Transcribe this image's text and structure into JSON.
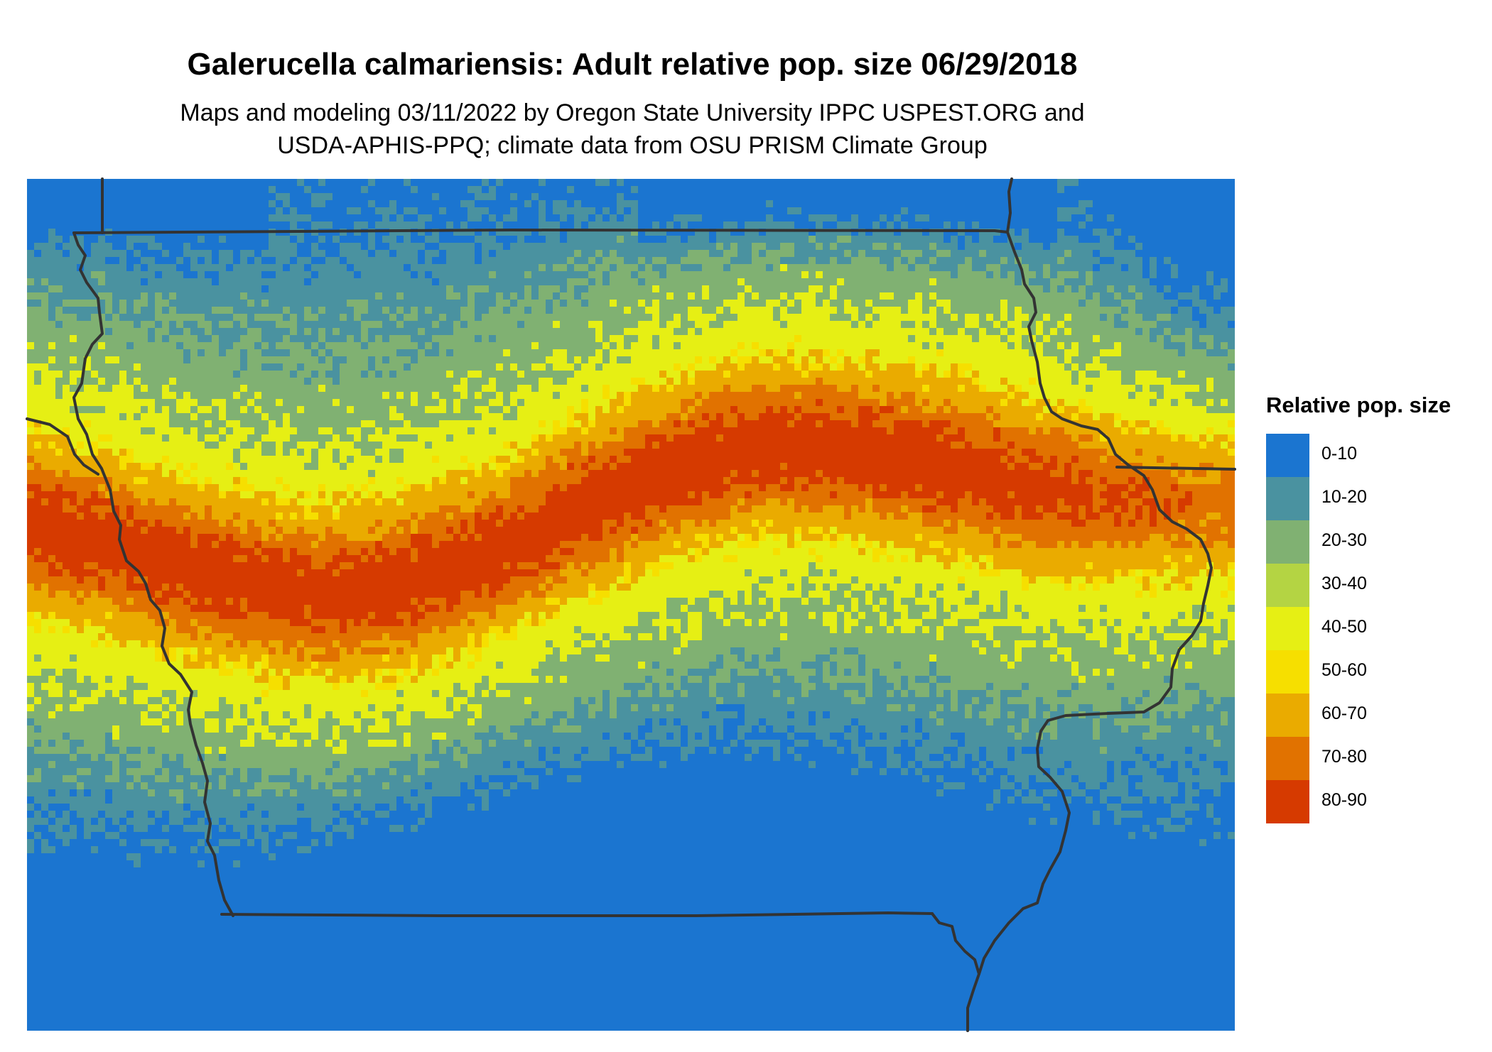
{
  "title": "Galerucella calmariensis: Adult relative pop. size 06/29/2018",
  "subtitle_lines": [
    "Maps and modeling 03/11/2022 by Oregon State University IPPC USPEST.ORG and",
    "USDA-APHIS-PPQ; climate data from OSU PRISM Climate Group"
  ],
  "legend": {
    "title": "Relative pop. size",
    "items": [
      {
        "label": "0-10",
        "color": "#1b75d0"
      },
      {
        "label": "10-20",
        "color": "#4a92a0"
      },
      {
        "label": "20-30",
        "color": "#80b172"
      },
      {
        "label": "30-40",
        "color": "#b4d443"
      },
      {
        "label": "40-50",
        "color": "#e6ef14"
      },
      {
        "label": "50-60",
        "color": "#f6df00"
      },
      {
        "label": "60-70",
        "color": "#eaab00"
      },
      {
        "label": "70-80",
        "color": "#e17200"
      },
      {
        "label": "80-90",
        "color": "#d63a00"
      }
    ]
  },
  "border_color": "#333333"
}
